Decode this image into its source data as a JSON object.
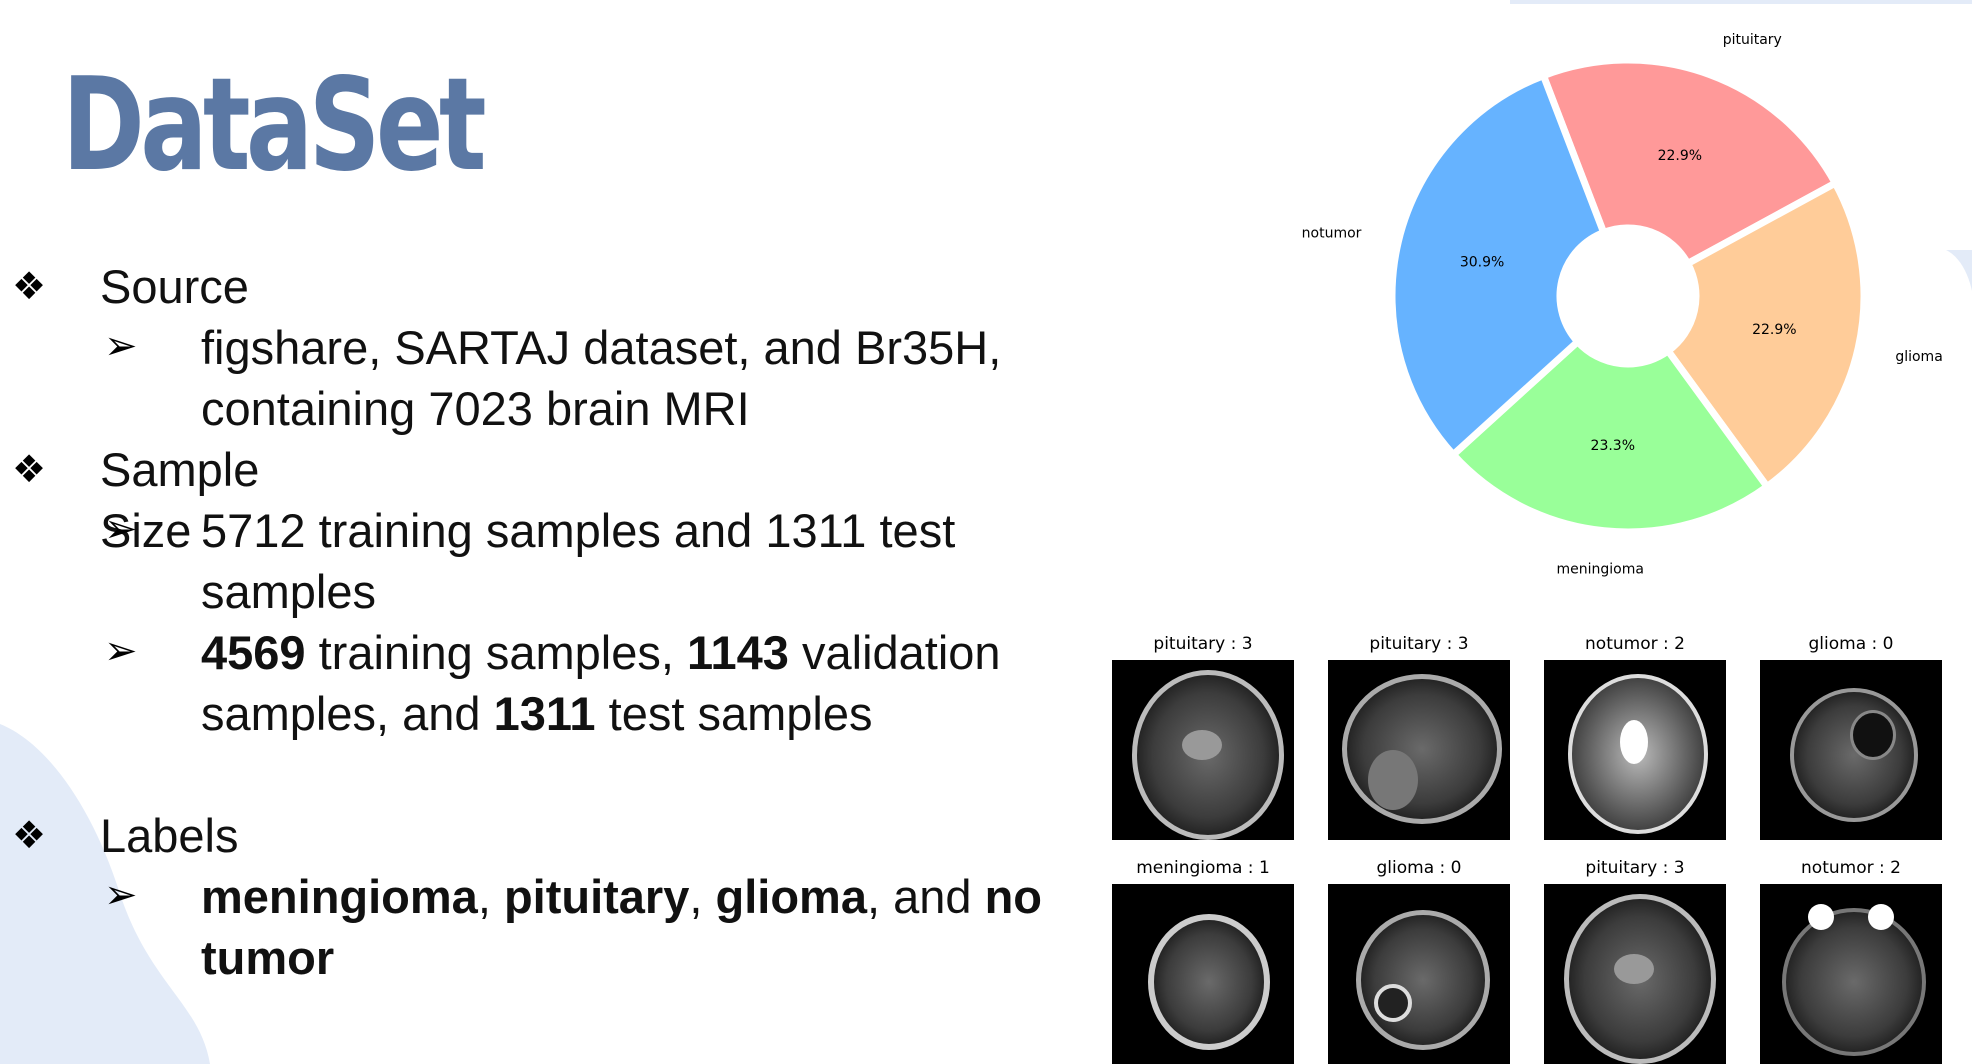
{
  "slide": {
    "title": "DataSet",
    "bullets": [
      {
        "heading": "Source",
        "subs": [
          {
            "parts": [
              {
                "t": "figshare, SARTAJ dataset, and Br35H, containing 7023 brain MRI",
                "b": false
              }
            ]
          }
        ]
      },
      {
        "heading": "Sample Size",
        "subs": [
          {
            "parts": [
              {
                "t": "5712 training samples and 1311 test samples",
                "b": false
              }
            ]
          },
          {
            "parts": [
              {
                "t": "4569",
                "b": true
              },
              {
                "t": " training samples, ",
                "b": false
              },
              {
                "t": "1143",
                "b": true
              },
              {
                "t": " validation samples, and ",
                "b": false
              },
              {
                "t": "1311",
                "b": true
              },
              {
                "t": " test samples",
                "b": false
              }
            ]
          }
        ]
      },
      {
        "heading": "Labels",
        "subs": [
          {
            "parts": [
              {
                "t": "meningioma",
                "b": true
              },
              {
                "t": ", ",
                "b": false
              },
              {
                "t": "pituitary",
                "b": true
              },
              {
                "t": ", ",
                "b": false
              },
              {
                "t": "glioma",
                "b": true
              },
              {
                "t": ", and ",
                "b": false
              },
              {
                "t": "no tumor",
                "b": true
              }
            ]
          }
        ]
      }
    ],
    "level1_marker": "❖",
    "level2_marker": "➢"
  },
  "chart_data": {
    "type": "pie",
    "donut": true,
    "slices": [
      {
        "label": "pituitary",
        "pct_label": "22.9%",
        "value": 22.9,
        "color": "#ff9999"
      },
      {
        "label": "glioma",
        "pct_label": "22.9%",
        "value": 22.9,
        "color": "#ffcc99"
      },
      {
        "label": "meningioma",
        "pct_label": "23.3%",
        "value": 23.3,
        "color": "#99ff99"
      },
      {
        "label": "notumor",
        "pct_label": "30.9%",
        "value": 30.9,
        "color": "#66b3ff"
      }
    ]
  },
  "samples": [
    {
      "label": "pituitary : 3",
      "view": "coronal"
    },
    {
      "label": "pituitary : 3",
      "view": "sagittal"
    },
    {
      "label": "notumor : 2",
      "view": "axial-t2"
    },
    {
      "label": "glioma : 0",
      "view": "axial-lesion"
    },
    {
      "label": "meningioma : 1",
      "view": "axial-top"
    },
    {
      "label": "glioma : 0",
      "view": "axial-ring"
    },
    {
      "label": "pituitary : 3",
      "view": "coronal"
    },
    {
      "label": "notumor : 2",
      "view": "axial-orbit"
    }
  ]
}
